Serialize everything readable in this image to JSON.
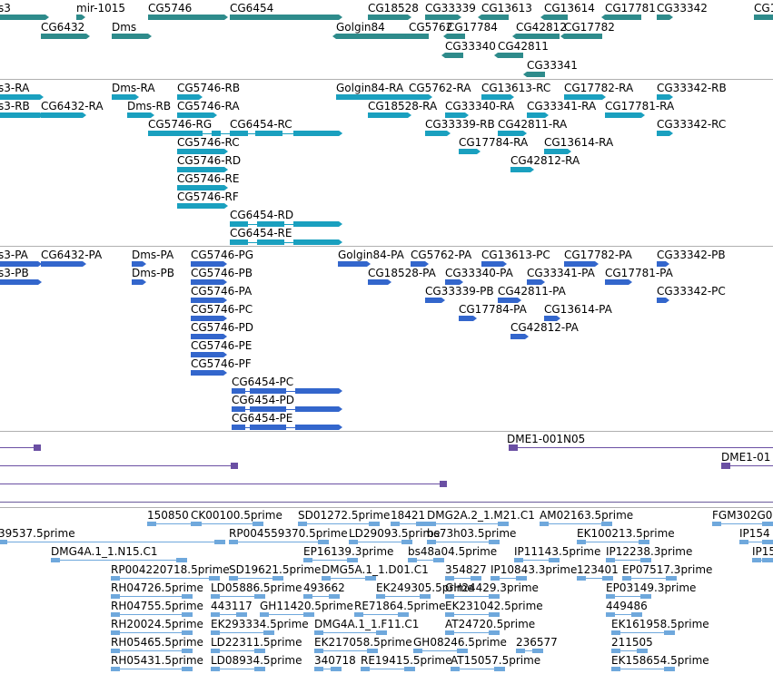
{
  "colors": {
    "gene": "#2e8b8b",
    "mrna": "#1aa0bf",
    "cds": "#3366cc",
    "cdna": "#6a4fa3",
    "est": "#6fa8dc",
    "divider": "#b0b0b0"
  },
  "tracks": {
    "genes": {
      "labels": [
        "s3",
        "mir-1015",
        "CG5746",
        "CG6454",
        "CG18528",
        "CG33339",
        "CG13613",
        "CG13614",
        "CG17781",
        "CG33342",
        "CG1",
        "CG6432",
        "Dms",
        "Golgin84",
        "CG5762",
        "CG17784",
        "CG42812",
        "CG17782",
        "CG33340",
        "CG42811",
        "CG33341"
      ]
    },
    "transcripts": {
      "labels": [
        "s3-RA",
        "s3-RB",
        "CG6432-RA",
        "Dms-RA",
        "Dms-RB",
        "CG5746-RB",
        "CG5746-RA",
        "CG5746-RG",
        "CG5746-RC",
        "CG5746-RD",
        "CG5746-RE",
        "CG5746-RF",
        "CG6454-RC",
        "CG6454-RD",
        "CG6454-RE",
        "Golgin84-RA",
        "CG18528-RA",
        "CG5762-RA",
        "CG33340-RA",
        "CG33339-RB",
        "CG13613-RC",
        "CG33341-RA",
        "CG42811-RA",
        "CG17784-RA",
        "CG42812-RA",
        "CG17782-RA",
        "CG17781-RA",
        "CG13614-RA",
        "CG33342-RB",
        "CG33342-RC"
      ]
    },
    "proteins": {
      "labels": [
        "s3-PA",
        "s3-PB",
        "CG6432-PA",
        "Dms-PA",
        "Dms-PB",
        "CG5746-PG",
        "CG5746-PB",
        "CG5746-PA",
        "CG5746-PC",
        "CG5746-PD",
        "CG5746-PE",
        "CG5746-PF",
        "CG6454-PC",
        "CG6454-PD",
        "CG6454-PE",
        "Golgin84-PA",
        "CG18528-PA",
        "CG5762-PA",
        "CG33340-PA",
        "CG33339-PB",
        "CG13613-PC",
        "CG33341-PA",
        "CG42811-PA",
        "CG17784-PA",
        "CG42812-PA",
        "CG17782-PA",
        "CG17781-PA",
        "CG13614-PA",
        "CG33342-PB",
        "CG33342-PC"
      ]
    },
    "cdna": {
      "labels": [
        "DME1-001N05",
        "DME1-01"
      ]
    },
    "est": {
      "labels": [
        "150850",
        "CK00100.5prime",
        "SD01272.5prime",
        "18421",
        "DMG2A.2_1.M21.C1",
        "AM02163.5prime",
        "FGM302G0",
        "39537.5prime",
        "RP004559370.5prime",
        "LD29093.5prime",
        "bs73h03.5prime",
        "EK100213.5prime",
        "IP154",
        "DMG4A.1_1.N15.C1",
        "EP16139.3prime",
        "bs48a04.5prime",
        "IP11143.5prime",
        "IP12238.3prime",
        "IP15",
        "RP004220718.5prime",
        "SD19621.5prime",
        "DMG5A.1_1.D01.C1",
        "354827",
        "IP10843.3prime",
        "123401",
        "EP07517.3prime",
        "RH04726.5prime",
        "LD05886.5prime",
        "493662",
        "EK249305.5prime",
        "GH24429.3prime",
        "EP03149.3prime",
        "RH04755.5prime",
        "443117",
        "GH11420.5prime",
        "RE71864.5prime",
        "EK231042.5prime",
        "449486",
        "RH20024.5prime",
        "EK293334.5prime",
        "DMG4A.1_1.F11.C1",
        "AT24720.5prime",
        "EK161958.5prime",
        "RH05465.5prime",
        "LD22311.5prime",
        "EK217058.5prime",
        "GH08246.5prime",
        "236577",
        "211505",
        "RH05431.5prime",
        "LD08934.5prime",
        "340718",
        "RE19415.5prime",
        "AT15057.5prime",
        "EK158654.5prime"
      ]
    }
  }
}
